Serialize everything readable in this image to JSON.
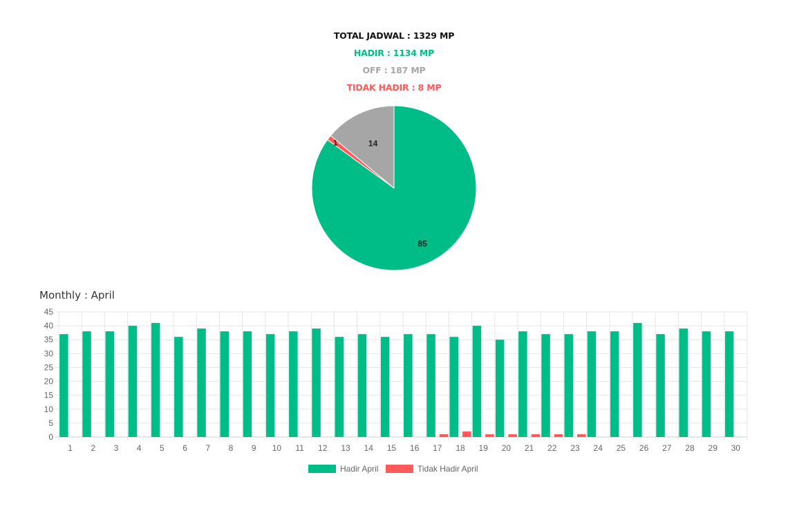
{
  "summary": {
    "total": "TOTAL JADWAL : 1329 MP",
    "hadir": "HADIR : 1134 MP",
    "off": "OFF : 187 MP",
    "tidak_hadir": "TIDAK HADIR : 8 MP"
  },
  "colors": {
    "hadir": "#00bc87",
    "off": "#a6a6a6",
    "tidak_hadir": "#ff5a5a"
  },
  "monthly_title": "Monthly : April",
  "chart_data": [
    {
      "type": "pie",
      "slices": [
        {
          "label": "85",
          "value": 85,
          "color": "#00bc87"
        },
        {
          "label": "1",
          "value": 1,
          "color": "#ff5a5a"
        },
        {
          "label": "14",
          "value": 14,
          "color": "#a6a6a6"
        }
      ]
    },
    {
      "type": "bar",
      "categories": [
        "1",
        "2",
        "3",
        "4",
        "5",
        "6",
        "7",
        "8",
        "9",
        "10",
        "11",
        "12",
        "13",
        "14",
        "15",
        "16",
        "17",
        "18",
        "19",
        "20",
        "21",
        "22",
        "23",
        "24",
        "25",
        "26",
        "27",
        "28",
        "29",
        "30"
      ],
      "series": [
        {
          "name": "Hadir April",
          "color": "#00bc87",
          "values": [
            37,
            38,
            38,
            40,
            41,
            36,
            39,
            38,
            38,
            37,
            38,
            39,
            36,
            37,
            36,
            37,
            37,
            36,
            40,
            35,
            38,
            37,
            37,
            38,
            38,
            41,
            37,
            39,
            38,
            38
          ]
        },
        {
          "name": "Tidak Hadir April",
          "color": "#ff5a5a",
          "values": [
            0,
            0,
            0,
            0,
            0,
            0,
            0,
            0,
            0,
            0,
            0,
            0,
            0,
            0,
            0,
            0,
            1,
            2,
            1,
            1,
            1,
            1,
            1,
            0,
            0,
            0,
            0,
            0,
            0,
            0
          ]
        }
      ],
      "ylim": [
        0,
        45
      ],
      "yticks": [
        0,
        5,
        10,
        15,
        20,
        25,
        30,
        35,
        40,
        45
      ],
      "grid": true,
      "legend": "bottom"
    }
  ]
}
